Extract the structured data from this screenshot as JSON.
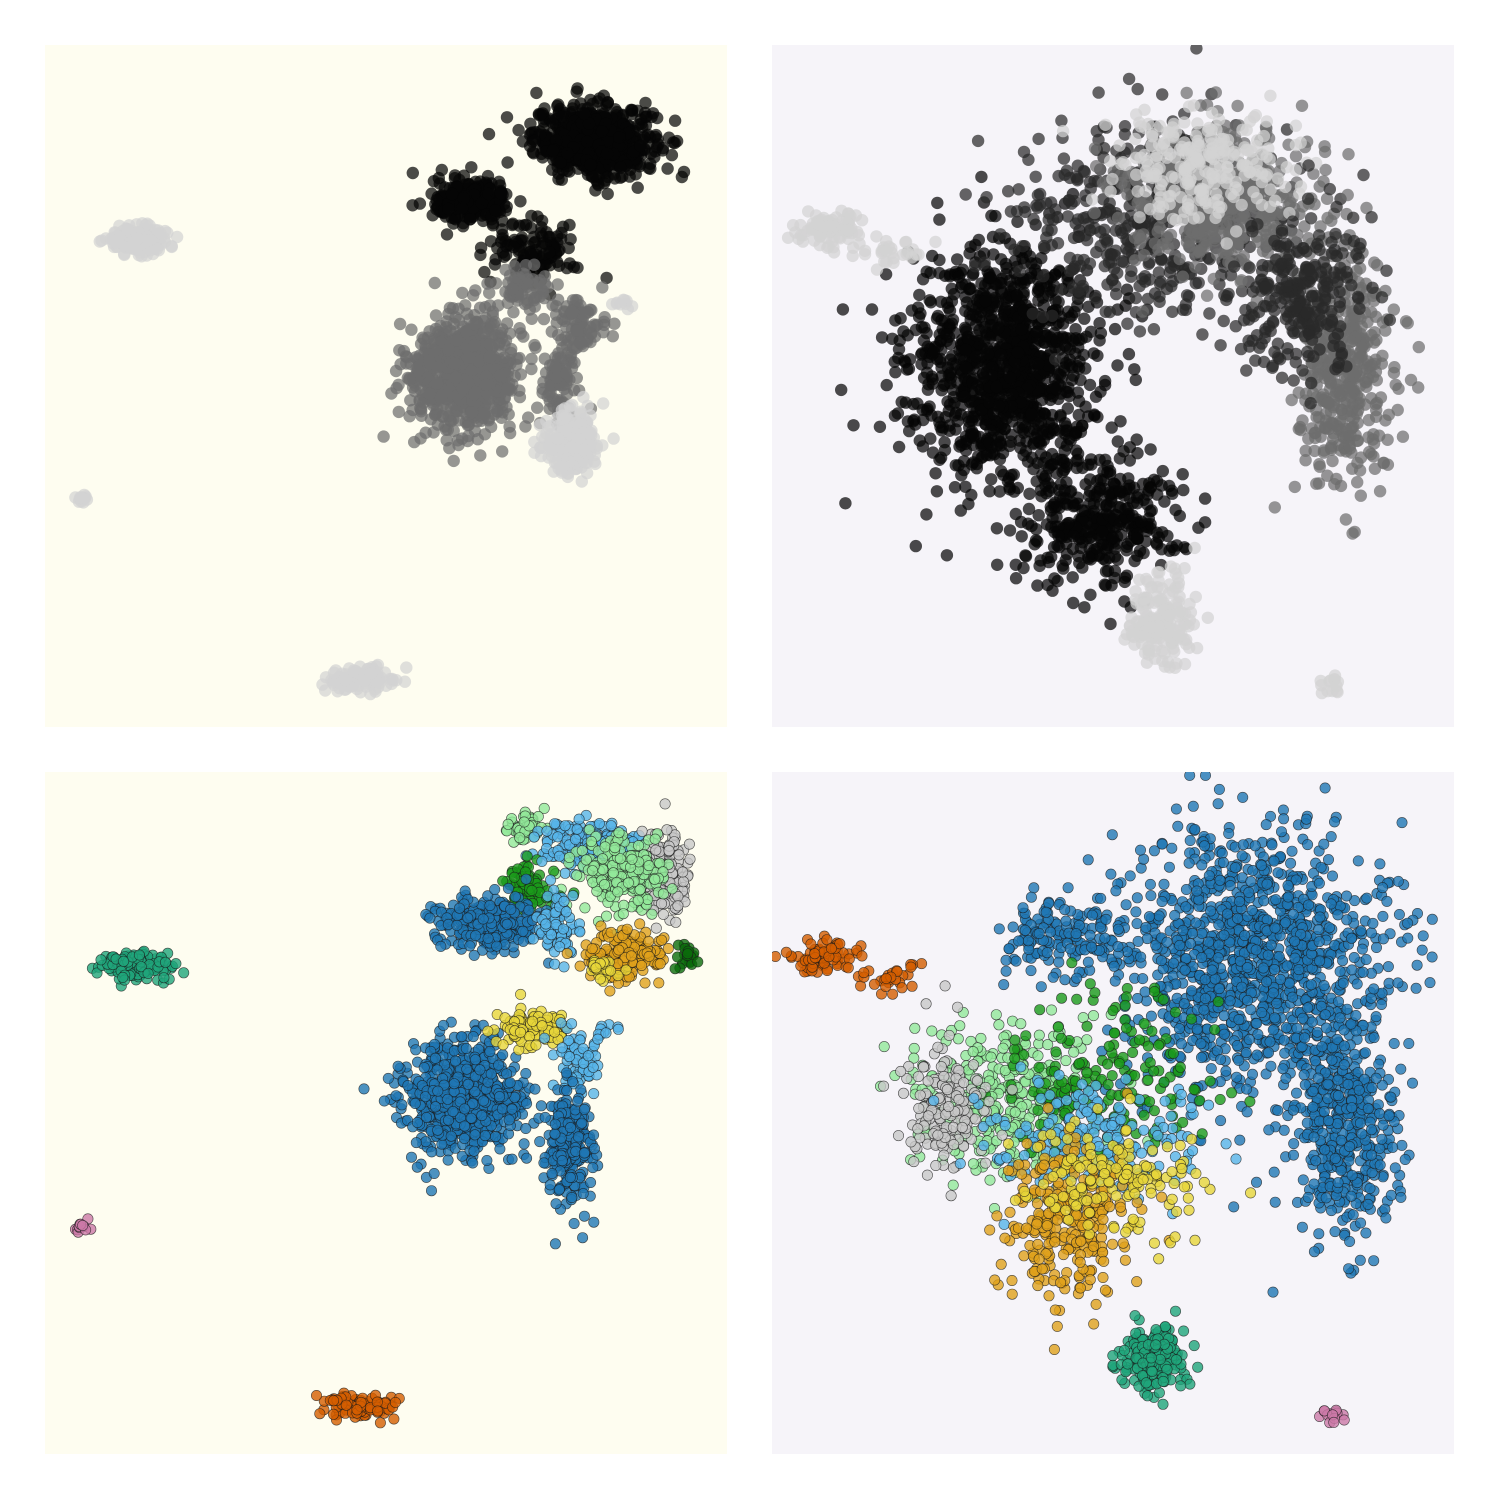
{
  "colors": {
    "bg_left": "#fefdf0",
    "bg_right": "#f6f4f9",
    "gray_levels": {
      "black": "#050505",
      "dark": "#2a2a2a",
      "mid": "#6e6e6e",
      "light": "#d2d2d2"
    },
    "categorical": {
      "light_green": "#92e89a",
      "blue": "#1f77b4",
      "sky": "#56b4e9",
      "gray": "#c8c8c8",
      "green": "#1a9a1a",
      "dark_green": "#0b6b0b",
      "orange": "#e0a11b",
      "teal": "#1fa57a",
      "vermilion": "#d45e00",
      "yellow": "#e7d63a",
      "pink": "#cc79a7"
    }
  },
  "chart_data": [
    {
      "type": "scatter",
      "panel": "top-left",
      "title": "",
      "xlabel": "",
      "ylabel": "",
      "xlim": [
        0,
        100
      ],
      "ylim": [
        0,
        100
      ],
      "grid": false,
      "legend": "none",
      "point_style": "grayscale, no outline",
      "clusters": [
        {
          "color": "black",
          "cx": 80.5,
          "cy": 86,
          "sx": 5.5,
          "sy": 3.2,
          "n": 700
        },
        {
          "color": "black",
          "cx": 62.5,
          "cy": 77,
          "sx": 3.4,
          "sy": 2.0,
          "n": 260
        },
        {
          "color": "black",
          "cx": 71.5,
          "cy": 70,
          "sx": 4.0,
          "sy": 3.0,
          "n": 120
        },
        {
          "color": "light",
          "cx": 13.5,
          "cy": 71.5,
          "sx": 3.0,
          "sy": 1.3,
          "n": 150
        },
        {
          "color": "mid",
          "cx": 61.5,
          "cy": 52,
          "sx": 5.0,
          "sy": 5.0,
          "n": 760
        },
        {
          "color": "mid",
          "cx": 78,
          "cy": 59,
          "sx": 2.0,
          "sy": 3.0,
          "n": 90
        },
        {
          "color": "mid",
          "cx": 75.5,
          "cy": 51,
          "sx": 1.8,
          "sy": 4.0,
          "n": 90
        },
        {
          "color": "mid",
          "cx": 70,
          "cy": 64,
          "sx": 2.8,
          "sy": 2.0,
          "n": 70
        },
        {
          "color": "light",
          "cx": 77.5,
          "cy": 41.5,
          "sx": 2.7,
          "sy": 3.0,
          "n": 220
        },
        {
          "color": "light",
          "cx": 84.5,
          "cy": 62,
          "sx": 1.2,
          "sy": 0.4,
          "n": 10
        },
        {
          "color": "light",
          "cx": 5.3,
          "cy": 33.5,
          "sx": 0.8,
          "sy": 0.6,
          "n": 14
        },
        {
          "color": "light",
          "cx": 46,
          "cy": 7,
          "sx": 3.5,
          "sy": 1.2,
          "n": 90
        }
      ]
    },
    {
      "type": "scatter",
      "panel": "top-right",
      "title": "",
      "xlabel": "",
      "ylabel": "",
      "xlim": [
        0,
        100
      ],
      "ylim": [
        0,
        100
      ],
      "grid": false,
      "legend": "none",
      "point_style": "grayscale, no outline",
      "clusters": [
        {
          "color": "black",
          "cx": 34,
          "cy": 53,
          "sx": 9.0,
          "sy": 11.0,
          "n": 1100
        },
        {
          "color": "black",
          "cx": 48,
          "cy": 30,
          "sx": 7.0,
          "sy": 6.0,
          "n": 350
        },
        {
          "color": "dark",
          "cx": 55,
          "cy": 75,
          "sx": 12.0,
          "sy": 9.0,
          "n": 450
        },
        {
          "color": "mid",
          "cx": 66,
          "cy": 77,
          "sx": 9.0,
          "sy": 7.0,
          "n": 450
        },
        {
          "color": "light",
          "cx": 63,
          "cy": 82,
          "sx": 8.0,
          "sy": 5.0,
          "n": 250
        },
        {
          "color": "mid",
          "cx": 84,
          "cy": 52,
          "sx": 4.0,
          "sy": 10.0,
          "n": 420
        },
        {
          "color": "dark",
          "cx": 78,
          "cy": 63,
          "sx": 6.0,
          "sy": 7.0,
          "n": 250
        },
        {
          "color": "light",
          "cx": 8,
          "cy": 73,
          "sx": 3.0,
          "sy": 1.5,
          "n": 80
        },
        {
          "color": "light",
          "cx": 17,
          "cy": 70,
          "sx": 4.0,
          "sy": 1.5,
          "n": 30
        },
        {
          "color": "light",
          "cx": 57,
          "cy": 15,
          "sx": 3.0,
          "sy": 4.0,
          "n": 180
        },
        {
          "color": "light",
          "cx": 82,
          "cy": 6,
          "sx": 1.2,
          "sy": 0.8,
          "n": 14
        }
      ]
    },
    {
      "type": "scatter",
      "panel": "bottom-left",
      "title": "",
      "xlabel": "",
      "ylabel": "",
      "xlim": [
        0,
        100
      ],
      "ylim": [
        0,
        100
      ],
      "grid": false,
      "legend": "none",
      "point_style": "categorical, thin dark outline",
      "clusters": [
        {
          "color": "light_green",
          "cx": 70.5,
          "cy": 92,
          "sx": 1.8,
          "sy": 1.3,
          "n": 60
        },
        {
          "color": "sky",
          "cx": 80,
          "cy": 89,
          "sx": 4.5,
          "sy": 2.2,
          "n": 220
        },
        {
          "color": "gray",
          "cx": 91,
          "cy": 85,
          "sx": 2.0,
          "sy": 4.0,
          "n": 170
        },
        {
          "color": "light_green",
          "cx": 84,
          "cy": 85,
          "sx": 4.0,
          "sy": 3.2,
          "n": 240
        },
        {
          "color": "green",
          "cx": 71,
          "cy": 83,
          "sx": 2.0,
          "sy": 2.2,
          "n": 90
        },
        {
          "color": "blue",
          "cx": 65,
          "cy": 78,
          "sx": 5.0,
          "sy": 2.4,
          "n": 300
        },
        {
          "color": "sky",
          "cx": 75,
          "cy": 78,
          "sx": 2.0,
          "sy": 3.5,
          "n": 70
        },
        {
          "color": "orange",
          "cx": 85,
          "cy": 73,
          "sx": 3.5,
          "sy": 2.4,
          "n": 180
        },
        {
          "color": "dark_green",
          "cx": 94,
          "cy": 73,
          "sx": 1.0,
          "sy": 1.5,
          "n": 22
        },
        {
          "color": "yellow",
          "cx": 82,
          "cy": 71,
          "sx": 1.5,
          "sy": 1.0,
          "n": 25
        },
        {
          "color": "teal",
          "cx": 13.5,
          "cy": 71.5,
          "sx": 3.0,
          "sy": 1.3,
          "n": 150
        },
        {
          "color": "blue",
          "cx": 61.5,
          "cy": 52,
          "sx": 5.0,
          "sy": 5.0,
          "n": 800
        },
        {
          "color": "yellow",
          "cx": 71.5,
          "cy": 62.5,
          "sx": 3.5,
          "sy": 1.8,
          "n": 100
        },
        {
          "color": "sky",
          "cx": 78,
          "cy": 58,
          "sx": 2.0,
          "sy": 3.0,
          "n": 70
        },
        {
          "color": "blue",
          "cx": 77,
          "cy": 45,
          "sx": 2.0,
          "sy": 5.0,
          "n": 260
        },
        {
          "color": "sky",
          "cx": 82,
          "cy": 62,
          "sx": 1.5,
          "sy": 0.7,
          "n": 12
        },
        {
          "color": "pink",
          "cx": 5.3,
          "cy": 33.5,
          "sx": 0.8,
          "sy": 0.6,
          "n": 14
        },
        {
          "color": "vermilion",
          "cx": 46,
          "cy": 7,
          "sx": 3.5,
          "sy": 1.2,
          "n": 90
        }
      ]
    },
    {
      "type": "scatter",
      "panel": "bottom-right",
      "title": "",
      "xlabel": "",
      "ylabel": "",
      "xlim": [
        0,
        100
      ],
      "ylim": [
        0,
        100
      ],
      "grid": false,
      "legend": "none",
      "point_style": "categorical, thin dark outline",
      "clusters": [
        {
          "color": "blue",
          "cx": 70,
          "cy": 72,
          "sx": 12.0,
          "sy": 12.0,
          "n": 1200
        },
        {
          "color": "blue",
          "cx": 84,
          "cy": 48,
          "sx": 5.0,
          "sy": 10.0,
          "n": 450
        },
        {
          "color": "blue",
          "cx": 43,
          "cy": 76,
          "sx": 6.0,
          "sy": 4.0,
          "n": 150
        },
        {
          "color": "light_green",
          "cx": 35,
          "cy": 52,
          "sx": 9.0,
          "sy": 7.0,
          "n": 350
        },
        {
          "color": "green",
          "cx": 50,
          "cy": 55,
          "sx": 9.0,
          "sy": 7.0,
          "n": 180
        },
        {
          "color": "gray",
          "cx": 26,
          "cy": 51,
          "sx": 4.0,
          "sy": 6.0,
          "n": 170
        },
        {
          "color": "sky",
          "cx": 45,
          "cy": 46,
          "sx": 10.0,
          "sy": 6.0,
          "n": 200
        },
        {
          "color": "orange",
          "cx": 43,
          "cy": 34,
          "sx": 6.0,
          "sy": 7.0,
          "n": 280
        },
        {
          "color": "yellow",
          "cx": 50,
          "cy": 40,
          "sx": 8.0,
          "sy": 5.0,
          "n": 150
        },
        {
          "color": "teal",
          "cx": 56,
          "cy": 14,
          "sx": 3.0,
          "sy": 3.0,
          "n": 200
        },
        {
          "color": "vermilion",
          "cx": 8,
          "cy": 73,
          "sx": 3.0,
          "sy": 1.5,
          "n": 80
        },
        {
          "color": "vermilion",
          "cx": 17,
          "cy": 70,
          "sx": 4.0,
          "sy": 1.5,
          "n": 30
        },
        {
          "color": "pink",
          "cx": 82,
          "cy": 6,
          "sx": 1.2,
          "sy": 0.8,
          "n": 14
        }
      ]
    }
  ]
}
